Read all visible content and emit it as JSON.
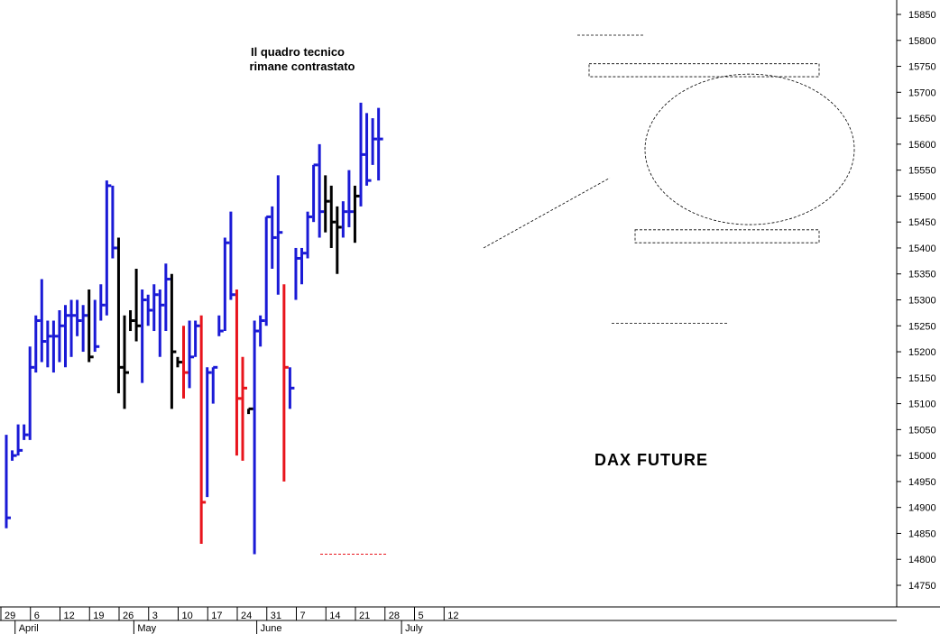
{
  "chart_data": {
    "type": "ohlc",
    "title": "DAX FUTURE",
    "annotation_lines": [
      "Il quadro tecnico",
      "rimane contrastato"
    ],
    "ylim": [
      14700,
      15880
    ],
    "y_ticks": [
      14750,
      14800,
      14850,
      14900,
      14950,
      15000,
      15050,
      15100,
      15150,
      15200,
      15250,
      15300,
      15350,
      15400,
      15450,
      15500,
      15550,
      15600,
      15650,
      15700,
      15750,
      15800,
      15850
    ],
    "day_labels": [
      {
        "label": "29",
        "idx": 0
      },
      {
        "label": "6",
        "idx": 5
      },
      {
        "label": "12",
        "idx": 10
      },
      {
        "label": "19",
        "idx": 15
      },
      {
        "label": "26",
        "idx": 20
      },
      {
        "label": "3",
        "idx": 25
      },
      {
        "label": "10",
        "idx": 30
      },
      {
        "label": "17",
        "idx": 35
      },
      {
        "label": "24",
        "idx": 40
      },
      {
        "label": "31",
        "idx": 45
      },
      {
        "label": "7",
        "idx": 50
      },
      {
        "label": "14",
        "idx": 55
      },
      {
        "label": "21",
        "idx": 60
      },
      {
        "label": "28",
        "idx": 65
      },
      {
        "label": "5",
        "idx": 70
      },
      {
        "label": "12",
        "idx": 75
      }
    ],
    "month_labels": [
      {
        "label": "April",
        "idx": 2.4
      },
      {
        "label": "May",
        "idx": 22.5
      },
      {
        "label": "June",
        "idx": 43.3
      },
      {
        "label": "July",
        "idx": 67.8
      }
    ],
    "color_map": {
      "b": "#1a1ad6",
      "k": "#000000",
      "r": "#e8141c"
    },
    "bars": [
      {
        "c": "b",
        "o": 14880,
        "h": 15040,
        "l": 14860,
        "cl": 14880
      },
      {
        "c": "b",
        "o": 15000,
        "h": 15010,
        "l": 14990,
        "cl": 15000
      },
      {
        "c": "b",
        "o": 15020,
        "h": 15060,
        "l": 15000,
        "cl": 15010
      },
      {
        "c": "b",
        "o": 15040,
        "h": 15060,
        "l": 15030,
        "cl": 15040
      },
      {
        "c": "b",
        "o": 15040,
        "h": 15210,
        "l": 15030,
        "cl": 15170
      },
      {
        "c": "b",
        "o": 15170,
        "h": 15270,
        "l": 15160,
        "cl": 15260
      },
      {
        "c": "b",
        "o": 15210,
        "h": 15340,
        "l": 15180,
        "cl": 15220
      },
      {
        "c": "b",
        "o": 15240,
        "h": 15260,
        "l": 15170,
        "cl": 15230
      },
      {
        "c": "b",
        "o": 15220,
        "h": 15260,
        "l": 15160,
        "cl": 15230
      },
      {
        "c": "b",
        "o": 15220,
        "h": 15280,
        "l": 15180,
        "cl": 15250
      },
      {
        "c": "b",
        "o": 15250,
        "h": 15290,
        "l": 15170,
        "cl": 15270
      },
      {
        "c": "b",
        "o": 15220,
        "h": 15300,
        "l": 15190,
        "cl": 15270
      },
      {
        "c": "b",
        "o": 15260,
        "h": 15300,
        "l": 15230,
        "cl": 15260
      },
      {
        "c": "b",
        "o": 15260,
        "h": 15290,
        "l": 15200,
        "cl": 15270
      },
      {
        "c": "k",
        "o": 15260,
        "h": 15320,
        "l": 15180,
        "cl": 15190
      },
      {
        "c": "b",
        "o": 15210,
        "h": 15300,
        "l": 15200,
        "cl": 15210
      },
      {
        "c": "b",
        "o": 15280,
        "h": 15330,
        "l": 15260,
        "cl": 15290
      },
      {
        "c": "b",
        "o": 15280,
        "h": 15530,
        "l": 15270,
        "cl": 15520
      },
      {
        "c": "b",
        "o": 15520,
        "h": 15520,
        "l": 15380,
        "cl": 15400
      },
      {
        "c": "k",
        "o": 15420,
        "h": 15420,
        "l": 15120,
        "cl": 15170
      },
      {
        "c": "k",
        "o": 15160,
        "h": 15270,
        "l": 15090,
        "cl": 15160
      },
      {
        "c": "k",
        "o": 15270,
        "h": 15280,
        "l": 15240,
        "cl": 15260
      },
      {
        "c": "k",
        "o": 15240,
        "h": 15360,
        "l": 15220,
        "cl": 15250
      },
      {
        "c": "b",
        "o": 15250,
        "h": 15320,
        "l": 15140,
        "cl": 15300
      },
      {
        "c": "b",
        "o": 15290,
        "h": 15310,
        "l": 15250,
        "cl": 15280
      },
      {
        "c": "b",
        "o": 15290,
        "h": 15330,
        "l": 15240,
        "cl": 15310
      },
      {
        "c": "b",
        "o": 15310,
        "h": 15320,
        "l": 15190,
        "cl": 15290
      },
      {
        "c": "b",
        "o": 15300,
        "h": 15370,
        "l": 15240,
        "cl": 15340
      },
      {
        "c": "k",
        "o": 15330,
        "h": 15350,
        "l": 15090,
        "cl": 15200
      },
      {
        "c": "k",
        "o": 15190,
        "h": 15190,
        "l": 15170,
        "cl": 15180
      },
      {
        "c": "r",
        "o": 15190,
        "h": 15250,
        "l": 15110,
        "cl": 15160
      },
      {
        "c": "b",
        "o": 15160,
        "h": 15260,
        "l": 15130,
        "cl": 15190
      },
      {
        "c": "b",
        "o": 15250,
        "h": 15260,
        "l": 15190,
        "cl": 15250
      },
      {
        "c": "r",
        "o": 15260,
        "h": 15270,
        "l": 14830,
        "cl": 14910
      },
      {
        "c": "b",
        "o": 14920,
        "h": 15170,
        "l": 14920,
        "cl": 15160
      },
      {
        "c": "b",
        "o": 15170,
        "h": 15170,
        "l": 15100,
        "cl": 15170
      },
      {
        "c": "b",
        "o": 15230,
        "h": 15270,
        "l": 15230,
        "cl": 15240
      },
      {
        "c": "b",
        "o": 15240,
        "h": 15420,
        "l": 15240,
        "cl": 15410
      },
      {
        "c": "b",
        "o": 15400,
        "h": 15470,
        "l": 15300,
        "cl": 15310
      },
      {
        "c": "r",
        "o": 15310,
        "h": 15320,
        "l": 15000,
        "cl": 15110
      },
      {
        "c": "r",
        "o": 15120,
        "h": 15190,
        "l": 14990,
        "cl": 15130
      },
      {
        "c": "k",
        "o": 15090,
        "h": 15090,
        "l": 15080,
        "cl": 15090
      },
      {
        "c": "b",
        "o": 15230,
        "h": 15260,
        "l": 14810,
        "cl": 15240
      },
      {
        "c": "b",
        "o": 15250,
        "h": 15270,
        "l": 15210,
        "cl": 15260
      },
      {
        "c": "b",
        "o": 15260,
        "h": 15460,
        "l": 15250,
        "cl": 15460
      },
      {
        "c": "b",
        "o": 15460,
        "h": 15480,
        "l": 15360,
        "cl": 15420
      },
      {
        "c": "b",
        "o": 15420,
        "h": 15540,
        "l": 15310,
        "cl": 15430
      },
      {
        "c": "r",
        "o": 15320,
        "h": 15330,
        "l": 14950,
        "cl": 15170
      },
      {
        "c": "b",
        "o": 15170,
        "h": 15170,
        "l": 15090,
        "cl": 15130
      },
      {
        "c": "b",
        "o": 15350,
        "h": 15400,
        "l": 15300,
        "cl": 15380
      },
      {
        "c": "b",
        "o": 15370,
        "h": 15400,
        "l": 15330,
        "cl": 15390
      },
      {
        "c": "b",
        "o": 15400,
        "h": 15470,
        "l": 15380,
        "cl": 15460
      },
      {
        "c": "b",
        "o": 15450,
        "h": 15560,
        "l": 15450,
        "cl": 15560
      },
      {
        "c": "b",
        "o": 15560,
        "h": 15600,
        "l": 15420,
        "cl": 15470
      },
      {
        "c": "k",
        "o": 15460,
        "h": 15540,
        "l": 15430,
        "cl": 15490
      },
      {
        "c": "k",
        "o": 15480,
        "h": 15520,
        "l": 15400,
        "cl": 15450
      },
      {
        "c": "k",
        "o": 15440,
        "h": 15480,
        "l": 15350,
        "cl": 15440
      },
      {
        "c": "b",
        "o": 15450,
        "h": 15490,
        "l": 15420,
        "cl": 15470
      },
      {
        "c": "b",
        "o": 15500,
        "h": 15550,
        "l": 15440,
        "cl": 15470
      },
      {
        "c": "k",
        "o": 15440,
        "h": 15520,
        "l": 15410,
        "cl": 15500
      },
      {
        "c": "b",
        "o": 15500,
        "h": 15680,
        "l": 15480,
        "cl": 15580
      },
      {
        "c": "b",
        "o": 15570,
        "h": 15660,
        "l": 15520,
        "cl": 15530
      },
      {
        "c": "b",
        "o": 15620,
        "h": 15650,
        "l": 15560,
        "cl": 15610
      },
      {
        "c": "b",
        "o": 15610,
        "h": 15670,
        "l": 15530,
        "cl": 15610
      }
    ]
  }
}
